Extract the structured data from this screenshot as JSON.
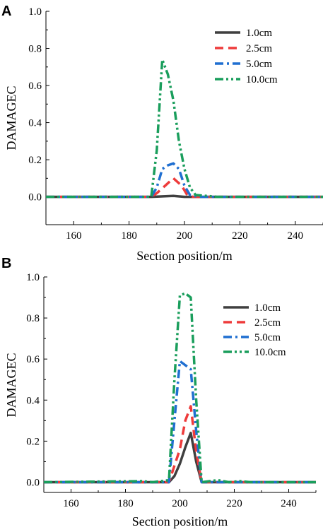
{
  "colors": {
    "1.0cm": "#3f3f3f",
    "2.5cm": "#ee3b3b",
    "5.0cm": "#1f6fd1",
    "10.0cm": "#1a9e5c"
  },
  "chart_data": [
    {
      "type": "line",
      "panel": "A",
      "xlabel": "Section position/m",
      "ylabel": "DAMAGEC",
      "xlim": [
        150,
        250
      ],
      "ylim": [
        -0.15,
        1.0
      ],
      "xticks": [
        160,
        180,
        200,
        220,
        240
      ],
      "yticks": [
        0.0,
        0.2,
        0.4,
        0.6,
        0.8,
        1.0
      ],
      "ytick_labels": [
        "0.0",
        "0.2",
        "0.4",
        "0.6",
        "0.8",
        "1.0"
      ],
      "legend_position": "top-right",
      "series": [
        {
          "name": "1.0cm",
          "color": "#3f3f3f",
          "dash": "solid",
          "points": [
            [
              150,
              0
            ],
            [
              188,
              0
            ],
            [
              196,
              0.005
            ],
            [
              200,
              0
            ],
            [
              250,
              0
            ]
          ]
        },
        {
          "name": "2.5cm",
          "color": "#ee3b3b",
          "dash": "dash",
          "points": [
            [
              150,
              0
            ],
            [
              188,
              0
            ],
            [
              190,
              0.02
            ],
            [
              193,
              0.06
            ],
            [
              196,
              0.1
            ],
            [
              199,
              0.06
            ],
            [
              201,
              0.01
            ],
            [
              203,
              0
            ],
            [
              250,
              0
            ]
          ]
        },
        {
          "name": "5.0cm",
          "color": "#1f6fd1",
          "dash": "dashdot",
          "points": [
            [
              150,
              0
            ],
            [
              188,
              0
            ],
            [
              190,
              0.05
            ],
            [
              192,
              0.15
            ],
            [
              194,
              0.17
            ],
            [
              196,
              0.18
            ],
            [
              198,
              0.15
            ],
            [
              200,
              0.06
            ],
            [
              202,
              0.01
            ],
            [
              205,
              0
            ],
            [
              250,
              0
            ]
          ]
        },
        {
          "name": "10.0cm",
          "color": "#1a9e5c",
          "dash": "dashdotdot",
          "points": [
            [
              150,
              0
            ],
            [
              188,
              0
            ],
            [
              190,
              0.25
            ],
            [
              192,
              0.74
            ],
            [
              194,
              0.66
            ],
            [
              196,
              0.52
            ],
            [
              198,
              0.3
            ],
            [
              200,
              0.15
            ],
            [
              202,
              0.05
            ],
            [
              204,
              0.01
            ],
            [
              208,
              0.005
            ],
            [
              212,
              0
            ],
            [
              250,
              0
            ]
          ]
        }
      ]
    },
    {
      "type": "line",
      "panel": "B",
      "xlabel": "Section position/m",
      "ylabel": "DAMAGEC",
      "xlim": [
        150,
        250
      ],
      "ylim": [
        -0.05,
        1.0
      ],
      "xticks": [
        160,
        180,
        200,
        220,
        240
      ],
      "yticks": [
        0.0,
        0.2,
        0.4,
        0.6,
        0.8,
        1.0
      ],
      "ytick_labels": [
        "0.0",
        "0.2",
        "0.4",
        "0.6",
        "0.8",
        "1.0"
      ],
      "legend_position": "top-right",
      "series": [
        {
          "name": "1.0cm",
          "color": "#3f3f3f",
          "dash": "solid",
          "points": [
            [
              150,
              0
            ],
            [
              196,
              0
            ],
            [
              198,
              0.03
            ],
            [
              200,
              0.09
            ],
            [
              202,
              0.17
            ],
            [
              204,
              0.24
            ],
            [
              206,
              0.1
            ],
            [
              208,
              0
            ],
            [
              250,
              0
            ]
          ]
        },
        {
          "name": "2.5cm",
          "color": "#ee3b3b",
          "dash": "dash",
          "points": [
            [
              150,
              0
            ],
            [
              196,
              0
            ],
            [
              198,
              0.08
            ],
            [
              200,
              0.16
            ],
            [
              202,
              0.3
            ],
            [
              204,
              0.37
            ],
            [
              206,
              0.15
            ],
            [
              208,
              0
            ],
            [
              250,
              0
            ]
          ]
        },
        {
          "name": "5.0cm",
          "color": "#1f6fd1",
          "dash": "dashdot",
          "points": [
            [
              150,
              0
            ],
            [
              196,
              0
            ],
            [
              198,
              0.3
            ],
            [
              200,
              0.59
            ],
            [
              202,
              0.57
            ],
            [
              204,
              0.55
            ],
            [
              206,
              0.25
            ],
            [
              208,
              0
            ],
            [
              250,
              0
            ]
          ]
        },
        {
          "name": "10.0cm",
          "color": "#1a9e5c",
          "dash": "dashdotdot",
          "points": [
            [
              150,
              0
            ],
            [
              186,
              0.005
            ],
            [
              190,
              0
            ],
            [
              196,
              0.01
            ],
            [
              198,
              0.5
            ],
            [
              200,
              0.91
            ],
            [
              202,
              0.92
            ],
            [
              204,
              0.9
            ],
            [
              206,
              0.4
            ],
            [
              208,
              0
            ],
            [
              214,
              0.01
            ],
            [
              218,
              0
            ],
            [
              222,
              0.005
            ],
            [
              226,
              0
            ],
            [
              250,
              0
            ]
          ]
        }
      ]
    }
  ]
}
